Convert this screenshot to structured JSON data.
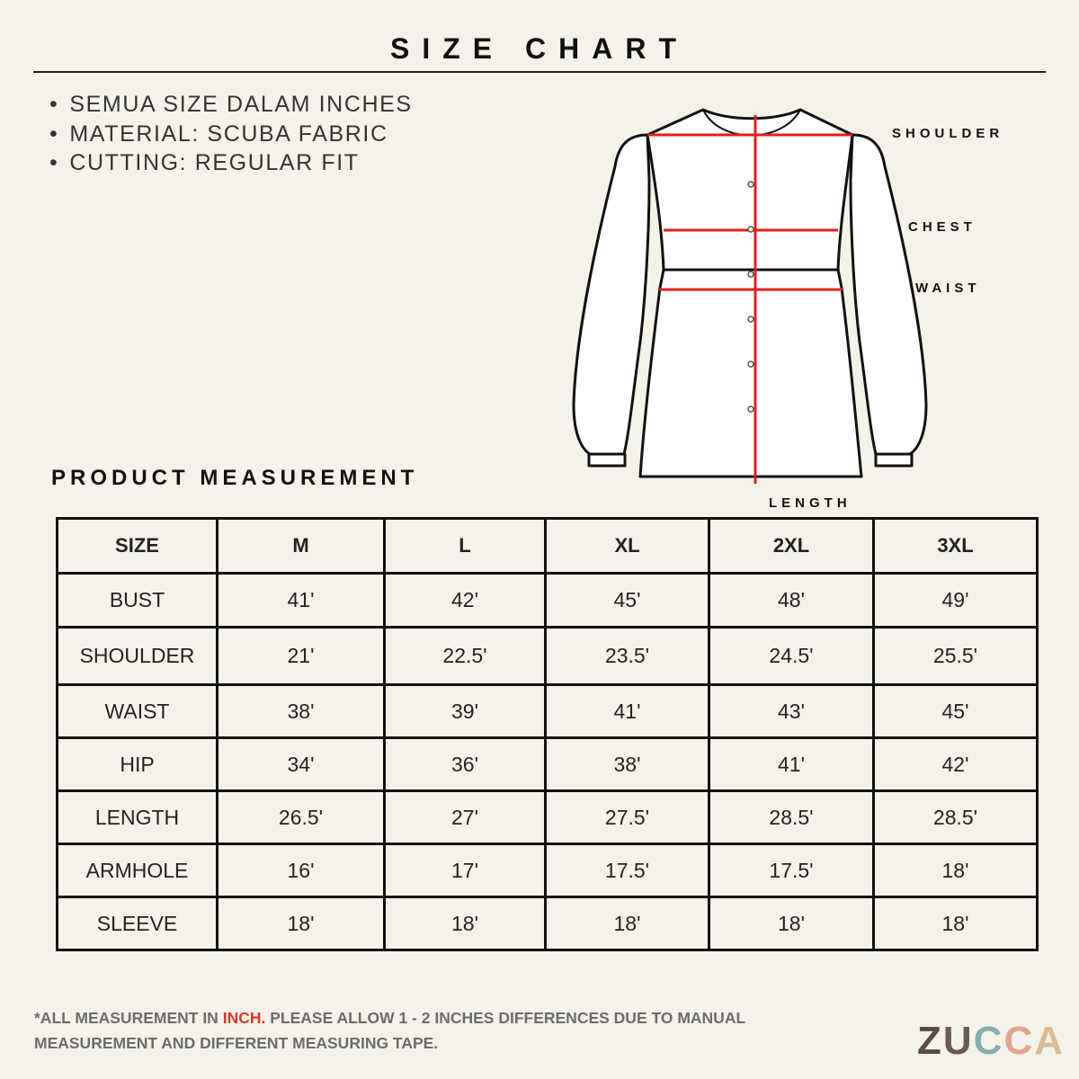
{
  "header": {
    "title": "SIZE CHART"
  },
  "notes": [
    "SEMUA SIZE DALAM INCHES",
    "MATERIAL: SCUBA FABRIC",
    "CUTTING: REGULAR FIT"
  ],
  "diagram": {
    "labels": {
      "shoulder": "SHOULDER",
      "chest": "CHEST",
      "waist": "WAIST",
      "length": "LENGTH"
    }
  },
  "section_title": "PRODUCT MEASUREMENT",
  "table": {
    "header": [
      "SIZE",
      "M",
      "L",
      "XL",
      "2XL",
      "3XL"
    ],
    "rows": [
      [
        "BUST",
        "41'",
        "42'",
        "45'",
        "48'",
        "49'"
      ],
      [
        "SHOULDER",
        "21'",
        "22.5'",
        "23.5'",
        "24.5'",
        "25.5'"
      ],
      [
        "WAIST",
        "38'",
        "39'",
        "41'",
        "43'",
        "45'"
      ],
      [
        "HIP",
        "34'",
        "36'",
        "38'",
        "41'",
        "42'"
      ],
      [
        "LENGTH",
        "26.5'",
        "27'",
        "27.5'",
        "28.5'",
        "28.5'"
      ],
      [
        "ARMHOLE",
        "16'",
        "17'",
        "17.5'",
        "17.5'",
        "18'"
      ],
      [
        "SLEEVE",
        "18'",
        "18'",
        "18'",
        "18'",
        "18'"
      ]
    ]
  },
  "footer": {
    "note": [
      "*ALL MEASUREMENT IN",
      "INCH.",
      "PLEASE ALLOW 1 - 2 INCHES DIFFERENCES DUE TO MANUAL MEASUREMENT AND DIFFERENT MEASURING TAPE."
    ]
  },
  "logo": {
    "letters": [
      {
        "text": "Z",
        "color": "#5b4b49"
      },
      {
        "text": "U",
        "color": "#6a5957"
      },
      {
        "text": "C",
        "color": "#86aeb0"
      },
      {
        "text": "C",
        "color": "#e3a38c"
      },
      {
        "text": "A",
        "color": "#d9ba93"
      }
    ]
  }
}
